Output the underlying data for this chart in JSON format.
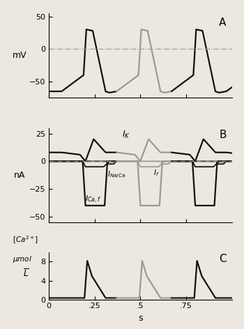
{
  "title_A": "A",
  "title_B": "B",
  "title_C": "C",
  "ylabel_A": "mV",
  "ylabel_B": "nA",
  "xlabel": "s",
  "xlim": [
    0,
    1.0
  ],
  "ylim_A": [
    -75,
    55
  ],
  "ylim_B": [
    -55,
    30
  ],
  "ylim_C": [
    0,
    10
  ],
  "yticks_A": [
    -50,
    0,
    50
  ],
  "yticks_B": [
    -50,
    -25,
    0,
    25
  ],
  "yticks_C": [
    0,
    4,
    8
  ],
  "xticks": [
    0,
    0.25,
    0.5,
    0.75
  ],
  "xticklabels": [
    "0",
    ".25",
    ".5",
    ".75"
  ],
  "period": 0.3,
  "t0": 0.07,
  "gray_cycle": 1,
  "background_color": "#ece8e0",
  "line_color_dark": "#111111",
  "line_color_gray": "#999999",
  "font_size_label": 9,
  "font_size_tick": 8,
  "font_size_letter": 11
}
